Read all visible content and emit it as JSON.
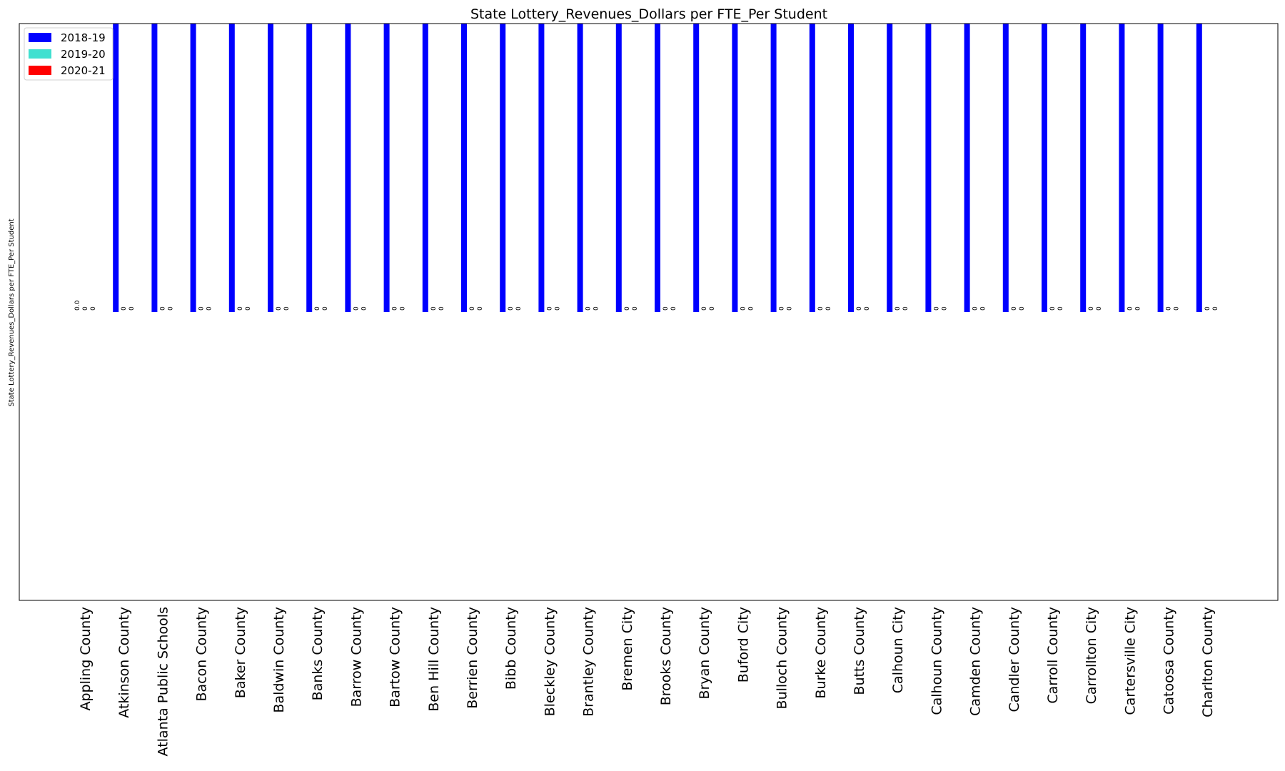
{
  "chart_data": {
    "type": "bar",
    "title": "State Lottery_Revenues_Dollars per FTE_Per Student",
    "xlabel": "",
    "ylabel": "State Lottery_Revenues_Dollars per FTE_Per Student",
    "categories": [
      "Appling County",
      "Atkinson County",
      "Atlanta Public Schools",
      "Bacon County",
      "Baker County",
      "Baldwin County",
      "Banks County",
      "Barrow County",
      "Bartow County",
      "Ben Hill County",
      "Berrien County",
      "Bibb County",
      "Bleckley County",
      "Brantley County",
      "Bremen City",
      "Brooks County",
      "Bryan County",
      "Buford City",
      "Bulloch County",
      "Burke County",
      "Butts County",
      "Calhoun City",
      "Calhoun County",
      "Camden County",
      "Candler County",
      "Carroll County",
      "Carrollton City",
      "Cartersville City",
      "Catoosa County",
      "Charlton County"
    ],
    "series": [
      {
        "name": "2018-19",
        "color": "#0000ff",
        "values": [
          0.0,
          1,
          1,
          1,
          1,
          1,
          1,
          1,
          1,
          1,
          1,
          1,
          1,
          1,
          1,
          1,
          1,
          1,
          1,
          1,
          1,
          1,
          1,
          1,
          1,
          1,
          1,
          1,
          1,
          1
        ],
        "labels": [
          "0.0",
          "",
          "",
          "",
          "",
          "",
          "",
          "",
          "",
          "",
          "",
          "",
          "",
          "",
          "",
          "",
          "",
          "",
          "",
          "",
          "",
          "",
          "",
          "",
          "",
          "",
          "",
          "",
          "",
          ""
        ]
      },
      {
        "name": "2019-20",
        "color": "#40e0d0",
        "values": [
          0,
          0,
          0,
          0,
          0,
          0,
          0,
          0,
          0,
          0,
          0,
          0,
          0,
          0,
          0,
          0,
          0,
          0,
          0,
          0,
          0,
          0,
          0,
          0,
          0,
          0,
          0,
          0,
          0,
          0
        ],
        "labels": [
          "0",
          "0",
          "0",
          "0",
          "0",
          "0",
          "0",
          "0",
          "0",
          "0",
          "0",
          "0",
          "0",
          "0",
          "0",
          "0",
          "0",
          "0",
          "0",
          "0",
          "0",
          "0",
          "0",
          "0",
          "0",
          "0",
          "0",
          "0",
          "0",
          "0"
        ]
      },
      {
        "name": "2020-21",
        "color": "#ff0000",
        "values": [
          0,
          0,
          0,
          0,
          0,
          0,
          0,
          0,
          0,
          0,
          0,
          0,
          0,
          0,
          0,
          0,
          0,
          0,
          0,
          0,
          0,
          0,
          0,
          0,
          0,
          0,
          0,
          0,
          0,
          0
        ],
        "labels": [
          "0",
          "0",
          "0",
          "0",
          "0",
          "0",
          "0",
          "0",
          "0",
          "0",
          "0",
          "0",
          "0",
          "0",
          "0",
          "0",
          "0",
          "0",
          "0",
          "0",
          "0",
          "0",
          "0",
          "0",
          "0",
          "0",
          "0",
          "0",
          "0",
          "0"
        ]
      }
    ],
    "ylim": [
      -1,
      1
    ],
    "grid": false,
    "legend": "top-left"
  }
}
